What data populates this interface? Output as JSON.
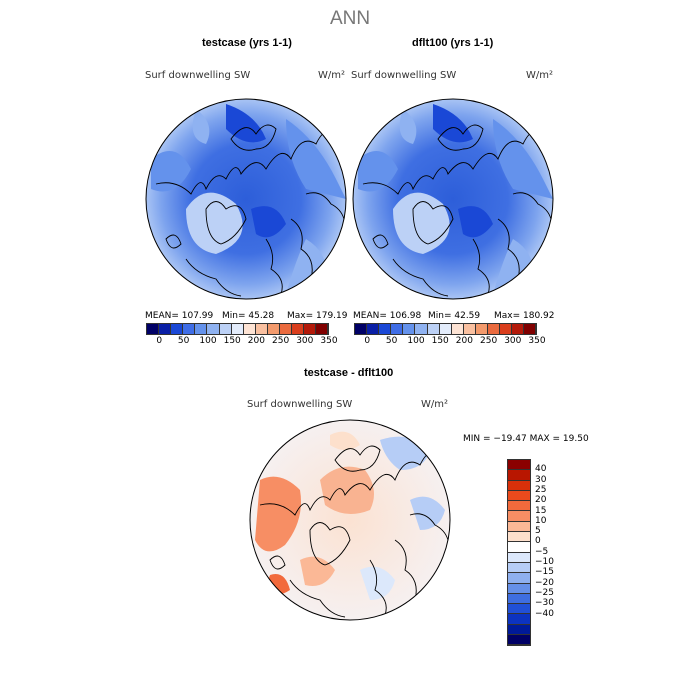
{
  "suptitle": "ANN",
  "panels": [
    {
      "title": "testcase (yrs 1-1)",
      "field_label": "Surf downwelling SW",
      "units": "W/m²",
      "mean_text": "MEAN= 107.99",
      "min_text": "Min=   45.28",
      "max_text": "Max= 179.19"
    },
    {
      "title": "dflt100 (yrs 1-1)",
      "field_label": "Surf downwelling SW",
      "units": "W/m²",
      "mean_text": "MEAN= 106.98",
      "min_text": "Min=   42.59",
      "max_text": "Max= 180.92"
    }
  ],
  "abs_colorbar": {
    "colors": [
      "#000066",
      "#0a1fa6",
      "#1a48d6",
      "#3f6de6",
      "#6492ec",
      "#8fb2f1",
      "#bcd1f6",
      "#e3ecfb",
      "#fde3d4",
      "#f9c0a0",
      "#f39a6c",
      "#ea6a3e",
      "#d93d1c",
      "#b41a0a",
      "#800000"
    ],
    "ticks": [
      "0",
      "50",
      "100",
      "150",
      "200",
      "250",
      "300",
      "350"
    ]
  },
  "diff_panel": {
    "title": "testcase - dflt100",
    "field_label": "Surf downwelling SW",
    "units": "W/m²",
    "minmax_text": "MIN = −19.47  MAX =   19.50"
  },
  "diff_colorbar": {
    "colors": [
      "#8b0000",
      "#b81600",
      "#d9300a",
      "#ea4a1c",
      "#f26a3c",
      "#f78e64",
      "#fbb896",
      "#fde0cc",
      "#ffffff",
      "#dce8fb",
      "#b6cdf6",
      "#8fb0ef",
      "#6690e8",
      "#3f6ee0",
      "#2150d6",
      "#0c33c0",
      "#001a99",
      "#000066"
    ],
    "ticks": [
      "40",
      "30",
      "25",
      "20",
      "15",
      "10",
      "5",
      "0",
      "−5",
      "−10",
      "−15",
      "−20",
      "−25",
      "−30",
      "−40"
    ]
  }
}
